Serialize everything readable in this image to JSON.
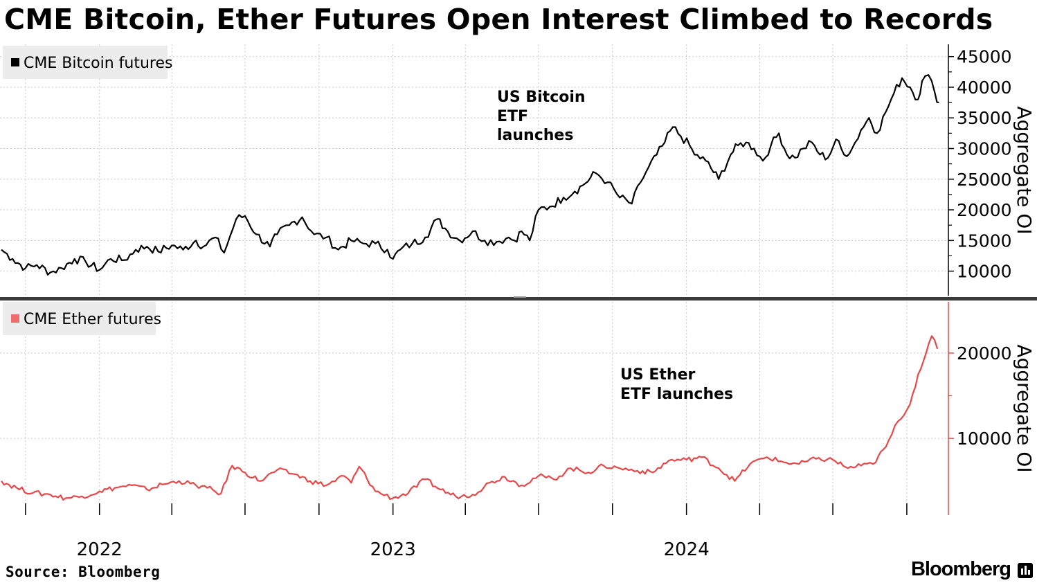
{
  "title": "CME Bitcoin, Ether Futures Open Interest Climbed to Records",
  "source": "Source: Bloomberg",
  "brand": "Bloomberg",
  "chart_data": [
    {
      "type": "line",
      "legend": "CME Bitcoin futures",
      "color": "#000000",
      "ylabel": "Aggregate OI",
      "ylim": [
        6000,
        47000
      ],
      "yticks": [
        10000,
        15000,
        20000,
        25000,
        30000,
        35000,
        40000,
        45000
      ],
      "annotation": [
        "US Bitcoin",
        "ETF",
        "launches"
      ],
      "series": [
        {
          "x": [
            "2021-09-01",
            "2021-09-15",
            "2021-10-01",
            "2021-10-15",
            "2021-11-01",
            "2021-11-15",
            "2021-12-01",
            "2021-12-15",
            "2022-01-01",
            "2022-01-15",
            "2022-02-01",
            "2022-02-15",
            "2022-03-01",
            "2022-03-15",
            "2022-04-01",
            "2022-04-15",
            "2022-05-01",
            "2022-05-10",
            "2022-05-25",
            "2022-06-05",
            "2022-06-20",
            "2022-07-01",
            "2022-07-15",
            "2022-08-01",
            "2022-08-10",
            "2022-08-25",
            "2022-09-10",
            "2022-09-25",
            "2022-10-10",
            "2022-10-25",
            "2022-11-10",
            "2022-11-25",
            "2022-12-10",
            "2022-12-25",
            "2023-01-01",
            "2023-01-10",
            "2023-01-25",
            "2023-02-10",
            "2023-02-25",
            "2023-03-10",
            "2023-03-25",
            "2023-04-10",
            "2023-04-25",
            "2023-05-10",
            "2023-05-25",
            "2023-06-01",
            "2023-06-10",
            "2023-06-20",
            "2023-07-01",
            "2023-07-15",
            "2023-08-01",
            "2023-08-15",
            "2023-08-25",
            "2023-09-10",
            "2023-09-25",
            "2023-10-10",
            "2023-10-25",
            "2023-11-05",
            "2023-11-15",
            "2023-11-25",
            "2023-12-05",
            "2023-12-15",
            "2023-12-25",
            "2024-01-05",
            "2024-01-11",
            "2024-01-25",
            "2024-02-10",
            "2024-02-25",
            "2024-03-05",
            "2024-03-15",
            "2024-03-25",
            "2024-04-05",
            "2024-04-15",
            "2024-04-25",
            "2024-05-05",
            "2024-05-15",
            "2024-05-25",
            "2024-06-05",
            "2024-06-15",
            "2024-06-25",
            "2024-07-05",
            "2024-07-15",
            "2024-07-25",
            "2024-08-05",
            "2024-08-15",
            "2024-08-25",
            "2024-09-05",
            "2024-09-15",
            "2024-09-25",
            "2024-10-05",
            "2024-10-15",
            "2024-10-20",
            "2024-10-28",
            "2024-11-05",
            "2024-11-10"
          ],
          "values": [
            13500,
            12000,
            10500,
            11000,
            9800,
            10500,
            12000,
            11500,
            10200,
            12000,
            11800,
            13500,
            14000,
            13200,
            14200,
            13500,
            15000,
            14000,
            15500,
            13000,
            18500,
            19000,
            16000,
            14000,
            16000,
            17500,
            18800,
            16000,
            15500,
            13500,
            15000,
            14500,
            14500,
            13500,
            12000,
            13500,
            14500,
            15500,
            18500,
            16500,
            15000,
            16500,
            15000,
            14800,
            15500,
            15000,
            16500,
            15000,
            20000,
            20500,
            22000,
            23000,
            24000,
            26000,
            24500,
            22000,
            21000,
            24500,
            27000,
            29000,
            31000,
            33500,
            32000,
            30500,
            29000,
            28000,
            25000,
            29000,
            30500,
            31000,
            30000,
            28000,
            30500,
            32500,
            29000,
            28500,
            30000,
            31000,
            29000,
            28500,
            31500,
            29000,
            30000,
            33000,
            35000,
            32500,
            36000,
            39000,
            41500,
            40000,
            38000,
            41000,
            42000,
            39000,
            37500
          ]
        }
      ]
    },
    {
      "type": "line",
      "legend": "CME Ether futures",
      "color": "#e8474a",
      "ylabel": "Aggregate OI",
      "ylim": [
        1000,
        26000
      ],
      "yticks": [
        10000,
        20000
      ],
      "annotation": [
        "US Ether",
        "ETF launches"
      ],
      "xticks": [
        "2022",
        "2023",
        "2024"
      ],
      "series": [
        {
          "x": [
            "2021-09-01",
            "2021-09-20",
            "2021-10-10",
            "2021-11-01",
            "2021-11-20",
            "2021-12-10",
            "2022-01-01",
            "2022-01-20",
            "2022-02-10",
            "2022-03-01",
            "2022-03-20",
            "2022-04-10",
            "2022-05-01",
            "2022-05-15",
            "2022-06-01",
            "2022-06-15",
            "2022-07-01",
            "2022-07-20",
            "2022-08-10",
            "2022-09-01",
            "2022-09-20",
            "2022-10-10",
            "2022-11-01",
            "2022-11-10",
            "2022-11-20",
            "2022-12-10",
            "2023-01-01",
            "2023-01-20",
            "2023-02-10",
            "2023-03-01",
            "2023-03-20",
            "2023-04-10",
            "2023-05-01",
            "2023-05-20",
            "2023-06-10",
            "2023-07-01",
            "2023-07-20",
            "2023-08-10",
            "2023-09-01",
            "2023-09-20",
            "2023-10-10",
            "2023-11-01",
            "2023-11-20",
            "2023-12-10",
            "2024-01-01",
            "2024-01-20",
            "2024-02-10",
            "2024-03-01",
            "2024-03-20",
            "2024-04-10",
            "2024-05-01",
            "2024-05-20",
            "2024-06-10",
            "2024-07-01",
            "2024-07-20",
            "2024-08-05",
            "2024-08-20",
            "2024-09-05",
            "2024-09-20",
            "2024-10-05",
            "2024-10-15",
            "2024-10-25",
            "2024-11-01",
            "2024-11-08"
          ],
          "values": [
            5000,
            4200,
            3600,
            3400,
            3000,
            3200,
            3800,
            4200,
            4500,
            4000,
            4600,
            5000,
            4500,
            4200,
            3500,
            6800,
            6000,
            5000,
            6300,
            5800,
            5000,
            4500,
            5600,
            4800,
            6700,
            3800,
            3000,
            3600,
            5200,
            4000,
            3200,
            3400,
            4800,
            5500,
            4500,
            5600,
            5200,
            6500,
            6000,
            6800,
            6500,
            6200,
            6000,
            7400,
            7500,
            7800,
            6500,
            5000,
            7000,
            7800,
            7200,
            7000,
            7600,
            7500,
            6500,
            6800,
            7000,
            9000,
            12000,
            14000,
            17500,
            20000,
            22000,
            20500
          ]
        }
      ]
    }
  ]
}
